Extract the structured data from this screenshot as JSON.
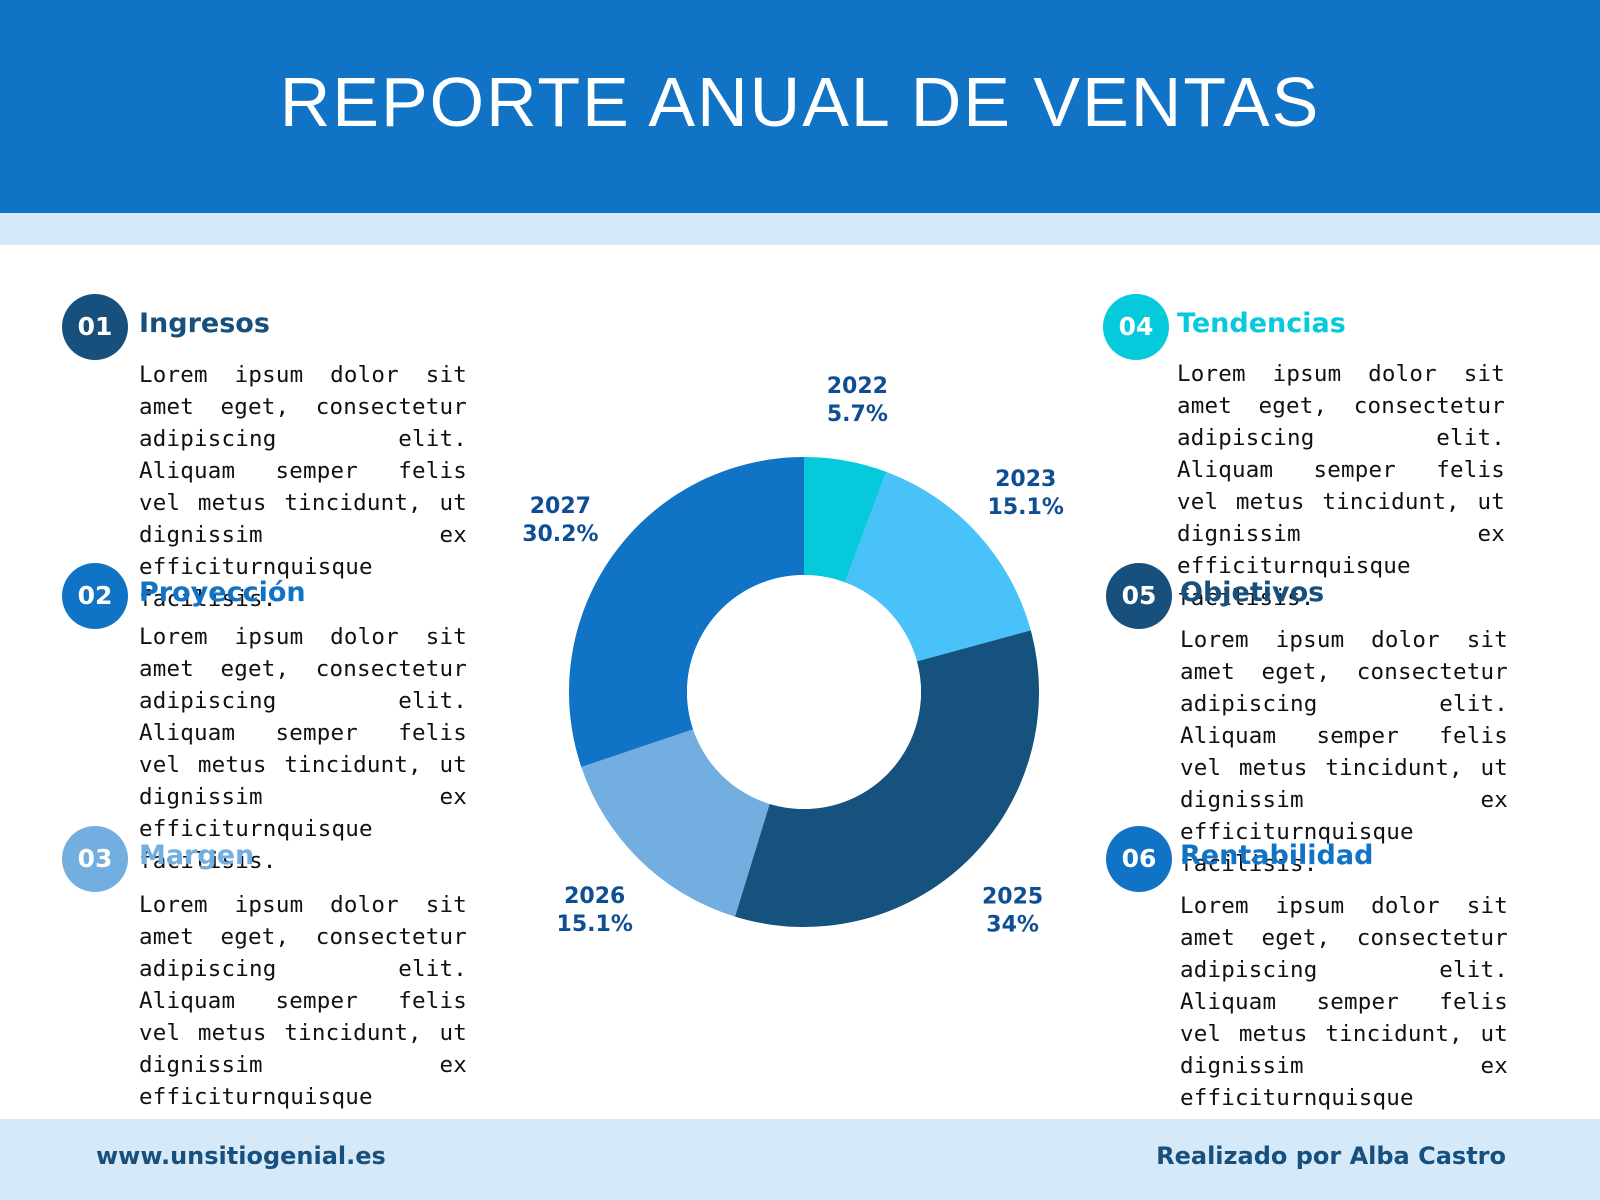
{
  "header": {
    "title": "REPORTE ANUAL DE VENTAS"
  },
  "sections": [
    {
      "number": "01",
      "title": "Ingresos",
      "body": "Lorem ipsum dolor sit amet eget, consectetur adipiscing elit. Aliquam semper felis vel metus tincidunt, ut dignissim ex efficiturnquisque facilisis.",
      "color": "#17507d",
      "title_color": "#17507d"
    },
    {
      "number": "02",
      "title": "Proyección",
      "body": "Lorem ipsum dolor sit amet eget, consectetur adipiscing elit. Aliquam semper felis vel metus tincidunt, ut dignissim ex efficiturnquisque facilisis.",
      "color": "#1173c5",
      "title_color": "#1173c5"
    },
    {
      "number": "03",
      "title": "Margen",
      "body": "Lorem ipsum dolor sit amet eget, consectetur adipiscing elit. Aliquam semper felis vel metus tincidunt, ut dignissim ex efficiturnquisque facilisis.",
      "color": "#73aee0",
      "title_color": "#73aee0"
    },
    {
      "number": "04",
      "title": "Tendencias",
      "body": "Lorem ipsum dolor sit amet eget, consectetur adipiscing elit. Aliquam semper felis vel metus tincidunt, ut dignissim ex efficiturnquisque facilisis.",
      "color": "#06c9dc",
      "title_color": "#06c9dc"
    },
    {
      "number": "05",
      "title": "Objetivos",
      "body": "Lorem ipsum dolor sit amet eget, consectetur adipiscing elit. Aliquam semper felis vel metus tincidunt, ut dignissim ex efficiturnquisque facilisis.",
      "color": "#17507d",
      "title_color": "#17507d"
    },
    {
      "number": "06",
      "title": "Rentabilidad",
      "body": "Lorem ipsum dolor sit amet eget, consectetur adipiscing elit. Aliquam semper felis vel metus tincidunt, ut dignissim ex efficiturnquisque facilisis.",
      "color": "#1173c5",
      "title_color": "#1173c5"
    }
  ],
  "footer": {
    "website": "www.unsitiogenial.es",
    "author": "Realizado por Alba Castro"
  },
  "chart_data": {
    "type": "pie",
    "variant": "donut",
    "title": "",
    "slices": [
      {
        "label": "2022",
        "value": 5.7,
        "value_label": "5.7%",
        "color": "#06c9dc"
      },
      {
        "label": "2023",
        "value": 15.1,
        "value_label": "15.1%",
        "color": "#49c2fa"
      },
      {
        "label": "2025",
        "value": 34,
        "value_label": "34%",
        "color": "#15527e"
      },
      {
        "label": "2026",
        "value": 15.1,
        "value_label": "15.1%",
        "color": "#73aee0"
      },
      {
        "label": "2027",
        "value": 30.2,
        "value_label": "30.2%",
        "color": "#1173c5"
      }
    ],
    "start": "top",
    "direction": "clockwise",
    "legend": "none",
    "label_color": "#0e4e94"
  }
}
